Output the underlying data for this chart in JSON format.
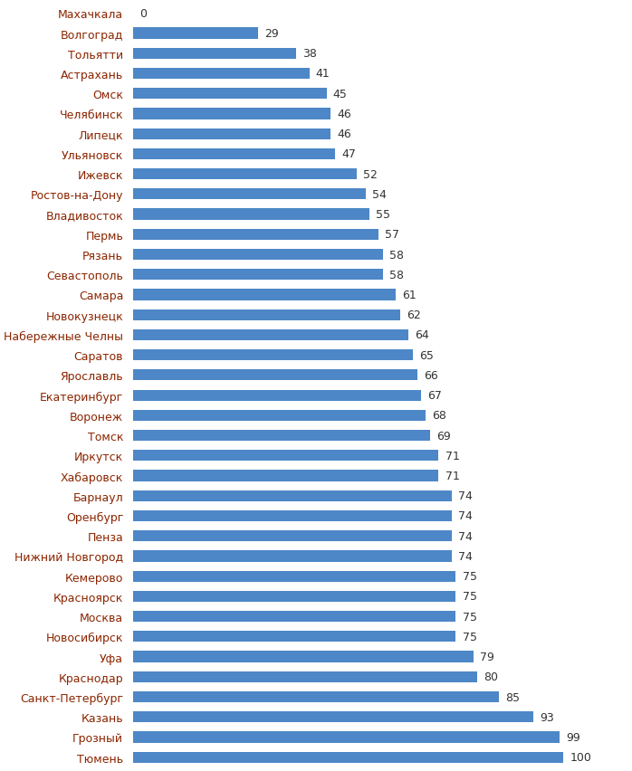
{
  "cities": [
    "Махачкала",
    "Волгоград",
    "Тольятти",
    "Астрахань",
    "Омск",
    "Челябинск",
    "Липецк",
    "Ульяновск",
    "Ижевск",
    "Ростов-на-Дону",
    "Владивосток",
    "Пермь",
    "Рязань",
    "Севастополь",
    "Самара",
    "Новокузнецк",
    "Набережные Челны",
    "Саратов",
    "Ярославль",
    "Екатеринбург",
    "Воронеж",
    "Томск",
    "Иркутск",
    "Хабаровск",
    "Барнаул",
    "Оренбург",
    "Пенза",
    "Нижний Новгород",
    "Кемерово",
    "Красноярск",
    "Москва",
    "Новосибирск",
    "Уфа",
    "Краснодар",
    "Санкт-Петербург",
    "Казань",
    "Грозный",
    "Тюмень"
  ],
  "values": [
    0,
    29,
    38,
    41,
    45,
    46,
    46,
    47,
    52,
    54,
    55,
    57,
    58,
    58,
    61,
    62,
    64,
    65,
    66,
    67,
    68,
    69,
    71,
    71,
    74,
    74,
    74,
    74,
    75,
    75,
    75,
    75,
    79,
    80,
    85,
    93,
    99,
    100
  ],
  "bar_color": "#4d87c7",
  "value_color": "#333333",
  "label_color": "#8B2500",
  "background_color": "#ffffff",
  "bar_height": 0.55,
  "xlim": [
    0,
    115
  ],
  "value_fontsize": 9,
  "label_fontsize": 9
}
